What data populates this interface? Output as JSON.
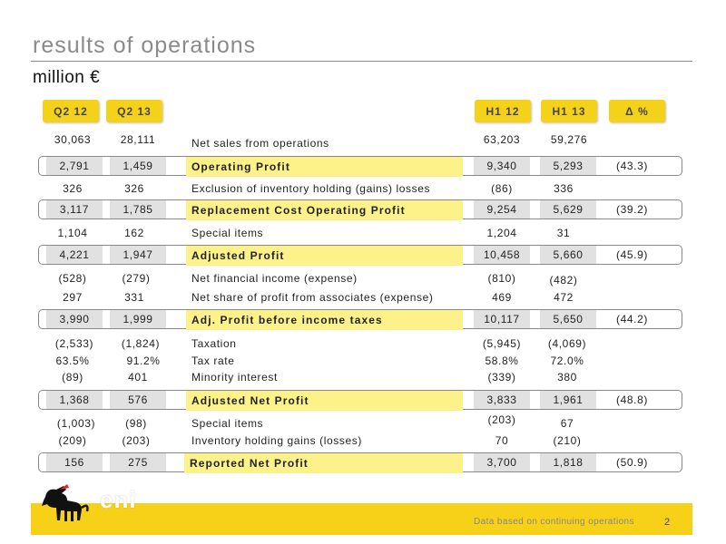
{
  "title": "results of operations",
  "subtitle": "million €",
  "headers": {
    "q2_12": "Q2 12",
    "q2_13": "Q2 13",
    "h1_12": "H1 12",
    "h1_13": "H1 13",
    "delta": "Δ %"
  },
  "rows": {
    "net_sales": {
      "label": "Net sales from operations",
      "q2_12": "30,063",
      "q2_13": "28,111",
      "h1_12": "63,203",
      "h1_13": "59,276"
    },
    "operating_profit": {
      "label": "Operating Profit",
      "q2_12": "2,791",
      "q2_13": "1,459",
      "h1_12": "9,340",
      "h1_13": "5,293",
      "delta": "(43.3)"
    },
    "inventory_exclusion": {
      "label": "Exclusion of inventory holding (gains) losses",
      "q2_12": "326",
      "q2_13": "326",
      "h1_12": "(86)",
      "h1_13": "336"
    },
    "replacement_cost": {
      "label": "Replacement Cost Operating Profit",
      "q2_12": "3,117",
      "q2_13": "1,785",
      "h1_12": "9,254",
      "h1_13": "5,629",
      "delta": "(39.2)"
    },
    "special_items_1": {
      "label": "Special items",
      "q2_12": "1,104",
      "q2_13": "162",
      "h1_12": "1,204",
      "h1_13": "31"
    },
    "adjusted_profit": {
      "label": "Adjusted Profit",
      "q2_12": "4,221",
      "q2_13": "1,947",
      "h1_12": "10,458",
      "h1_13": "5,660",
      "delta": "(45.9)"
    },
    "net_financial": {
      "label": "Net financial income (expense)",
      "q2_12": "(528)",
      "q2_13": "(279)",
      "h1_12": "(810)",
      "h1_13": "(482)"
    },
    "associates": {
      "label": "Net share of profit from associates (expense)",
      "q2_12": "297",
      "q2_13": "331",
      "h1_12": "469",
      "h1_13": "472"
    },
    "adj_profit_before_tax": {
      "label": "Adj. Profit before income taxes",
      "q2_12": "3,990",
      "q2_13": "1,999",
      "h1_12": "10,117",
      "h1_13": "5,650",
      "delta": "(44.2)"
    },
    "taxation": {
      "label": "Taxation",
      "q2_12": "(2,533)",
      "q2_13": "(1,824)",
      "h1_12": "(5,945)",
      "h1_13": "(4,069)"
    },
    "tax_rate": {
      "label": "Tax rate",
      "q2_12": "63.5%",
      "q2_13": "91.2%",
      "h1_12": "58.8%",
      "h1_13": "72.0%"
    },
    "minority": {
      "label": "Minority interest",
      "q2_12": "(89)",
      "q2_13": "401",
      "h1_12": "(339)",
      "h1_13": "380"
    },
    "adjusted_net_profit": {
      "label": "Adjusted Net Profit",
      "q2_12": "1,368",
      "q2_13": "576",
      "h1_12": "3,833",
      "h1_13": "1,961",
      "delta": "(48.8)"
    },
    "special_items_2": {
      "label": "Special items",
      "q2_12": "(1,003)",
      "q2_13": "(98)",
      "h1_12": "(203)",
      "h1_13": "67"
    },
    "inventory_gains": {
      "label": "Inventory holding gains (losses)",
      "q2_12": "(209)",
      "q2_13": "(203)",
      "h1_12": "70",
      "h1_13": "(210)"
    },
    "reported_net_profit": {
      "label": "Reported Net Profit",
      "q2_12": "156",
      "q2_13": "275",
      "h1_12": "3,700",
      "h1_13": "1,818",
      "delta": "(50.9)"
    }
  },
  "footer": {
    "note": "Data based on continuing operations",
    "page": "2",
    "logo_text": "eni"
  },
  "colors": {
    "accent_yellow": "#f5d21a",
    "label_highlight": "#fcf289",
    "value_box": "#e1e1e1",
    "title_gray": "#8a8a8a"
  }
}
